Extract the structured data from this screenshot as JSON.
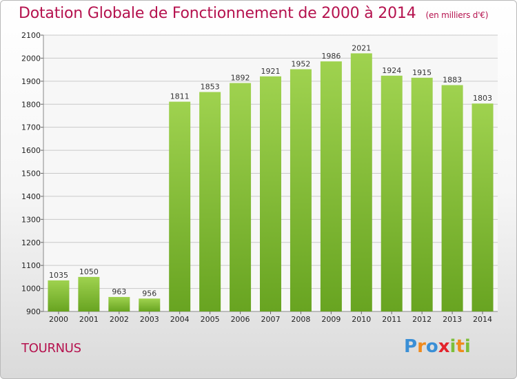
{
  "title": "Dotation Globale de Fonctionnement de 2000 à 2014",
  "units": "(en milliers d'€)",
  "commune": "TOURNUS",
  "logo": {
    "text": "Proxiti",
    "letters": [
      {
        "ch": "P",
        "color": "#3a8fd6"
      },
      {
        "ch": "r",
        "color": "#f08a1c"
      },
      {
        "ch": "o",
        "color": "#3a8fd6"
      },
      {
        "ch": "x",
        "color": "#e3232c"
      },
      {
        "ch": "i",
        "color": "#7cbf3a"
      },
      {
        "ch": "t",
        "color": "#f08a1c"
      },
      {
        "ch": "i",
        "color": "#7cbf3a"
      }
    ]
  },
  "colors": {
    "bar_top": "#9fd24f",
    "bar_bottom": "#68a421",
    "grid": "#c8c8c8",
    "title": "#b5124e"
  },
  "chart_data": {
    "type": "bar",
    "categories": [
      "2000",
      "2001",
      "2002",
      "2003",
      "2004",
      "2005",
      "2006",
      "2007",
      "2008",
      "2009",
      "2010",
      "2011",
      "2012",
      "2013",
      "2014"
    ],
    "values": [
      1035,
      1050,
      963,
      956,
      1811,
      1853,
      1892,
      1921,
      1952,
      1986,
      2021,
      1924,
      1915,
      1883,
      1803
    ],
    "ylim": [
      900,
      2100
    ],
    "yticks": [
      900,
      1000,
      1100,
      1200,
      1300,
      1400,
      1500,
      1600,
      1700,
      1800,
      1900,
      2000,
      2100
    ],
    "grid": true
  }
}
